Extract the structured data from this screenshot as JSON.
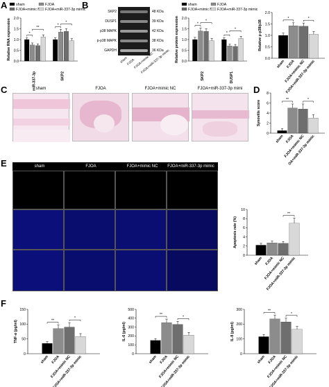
{
  "panels": {
    "A": {
      "letter": "A",
      "ylabel": "Relative RNA expression",
      "legend": [
        "sham",
        "FJOA",
        "FJOA+mimic NC",
        "FJOA+miR-337-3p mimic"
      ],
      "categories": [
        "miR-337-3p",
        "SKP2"
      ],
      "values": [
        [
          1.0,
          0.75,
          0.72,
          1.12
        ],
        [
          1.0,
          1.35,
          1.38,
          0.95
        ]
      ],
      "errors": [
        [
          0.08,
          0.09,
          0.08,
          0.1
        ],
        [
          0.08,
          0.12,
          0.12,
          0.09
        ]
      ],
      "sig": [
        "*",
        "**",
        "*",
        "*"
      ],
      "yticks": [
        "0.0",
        "0.5",
        "1.0",
        "1.5",
        "2.0"
      ],
      "ylim": [
        0,
        2.0
      ]
    },
    "B": {
      "letter": "B",
      "blot_rows": [
        "SKP2",
        "DUSP1",
        "p38 MAPK",
        "p-p38 MAPK",
        "GAPDH"
      ],
      "blot_kda": [
        "48 KDa",
        "39 KDa",
        "42 KDa",
        "38 KDa",
        "36 KDa"
      ],
      "blot_lanes": [
        "sham",
        "FJOA",
        "FJOA+mimic NC",
        "FJOA+miR-337-3p mimic"
      ],
      "legend": [
        "sham",
        "FJOA",
        "FJOA+mimic NC",
        "FJOA+miR-337-3p mimic"
      ],
      "ylabel": "Relative protein expression",
      "categories": [
        "SKP2",
        "DUSP1"
      ],
      "values": [
        [
          1.0,
          1.4,
          1.38,
          0.95
        ],
        [
          1.0,
          0.7,
          0.68,
          1.05
        ]
      ],
      "errors": [
        [
          0.1,
          0.13,
          0.12,
          0.1
        ],
        [
          0.09,
          0.08,
          0.09,
          0.1
        ]
      ],
      "sig": [
        "*",
        "*",
        "*",
        "*"
      ],
      "yticks": [
        "0.0",
        "0.5",
        "1.0",
        "1.5",
        "2.0"
      ],
      "ylim": [
        0,
        2.0
      ],
      "ratio_ylabel": "Relative p-p38/p38",
      "ratio_values": [
        1.0,
        1.42,
        1.4,
        1.05
      ],
      "ratio_errors": [
        0.1,
        0.13,
        0.14,
        0.12
      ],
      "ratio_yticks": [
        "0.0",
        "0.5",
        "1.0",
        "1.5",
        "2.0"
      ],
      "ratio_sig": [
        "*",
        "*"
      ],
      "ratio_ylim": [
        0,
        2.0
      ]
    },
    "C": {
      "letter": "C",
      "images": [
        "sham",
        "FJOA",
        "FJOA+mimic NC",
        "FJOA+miR-337-3p mimi"
      ]
    },
    "D": {
      "letter": "D",
      "ylabel": "Synovitis score",
      "categories": [
        "sham",
        "FJOA",
        "FJOA+mimic NC",
        "OA+miR-337-3p mimic"
      ],
      "values": [
        0.5,
        5.0,
        4.8,
        3.0
      ],
      "errors": [
        0.4,
        0.8,
        1.0,
        0.7
      ],
      "yticks": [
        "0",
        "2",
        "4",
        "6",
        "8"
      ],
      "ylim": [
        0,
        8
      ],
      "sig": [
        "**",
        "*"
      ]
    },
    "E": {
      "letter": "E",
      "image_headers": [
        "sham",
        "FJOA",
        "FJOA+mimic NC",
        "FJOA+miR-337-3p mimic"
      ],
      "ylabel": "Apoptosis rate (%)",
      "categories": [
        "sham",
        "FJOA",
        "FJOA+mimic NC",
        "FJOA+miR-337-3p mimic"
      ],
      "values": [
        2.2,
        2.7,
        2.6,
        7.0
      ],
      "errors": [
        0.4,
        0.4,
        0.4,
        1.1
      ],
      "yticks": [
        "0",
        "2",
        "4",
        "6",
        "8",
        "10"
      ],
      "ylim": [
        0,
        10
      ],
      "sig": [
        "**"
      ]
    },
    "F": {
      "letter": "F",
      "charts": [
        {
          "ylabel": "TNF-α (pg/ml)",
          "categories": [
            "sham",
            "FJOA",
            "FJOA+mimic NC",
            "FJOA+miR-337-3p mimic"
          ],
          "values": [
            35,
            85,
            90,
            58
          ],
          "errors": [
            6,
            12,
            15,
            10
          ],
          "yticks": [
            "0",
            "50",
            "100",
            "150"
          ],
          "ylim": [
            0,
            150
          ],
          "sig": [
            "**",
            "*"
          ]
        },
        {
          "ylabel": "IL-6 (pg/ml)",
          "categories": [
            "sham",
            "FJOA",
            "FJOA+mimic NC",
            "FJOA+miR-337-3p mimic"
          ],
          "values": [
            150,
            350,
            330,
            210
          ],
          "errors": [
            20,
            40,
            35,
            30
          ],
          "yticks": [
            "0",
            "100",
            "200",
            "300",
            "400",
            "500"
          ],
          "ylim": [
            0,
            500
          ],
          "sig": [
            "**",
            "*"
          ]
        },
        {
          "ylabel": "IL-8 (pg/ml)",
          "categories": [
            "sham",
            "FJOA",
            "FJOA+mimic NC",
            "FJOA+miR-337-3p mimic"
          ],
          "values": [
            115,
            235,
            215,
            165
          ],
          "errors": [
            15,
            25,
            25,
            20
          ],
          "yticks": [
            "0",
            "100",
            "200",
            "300"
          ],
          "ylim": [
            0,
            300
          ],
          "sig": [
            "**",
            "*"
          ]
        }
      ]
    }
  },
  "colors": {
    "sham": "#000000",
    "fjoa": "#8c8c8c",
    "mimic_nc": "#6e6e6e",
    "mimic": "#d8d8d8"
  }
}
